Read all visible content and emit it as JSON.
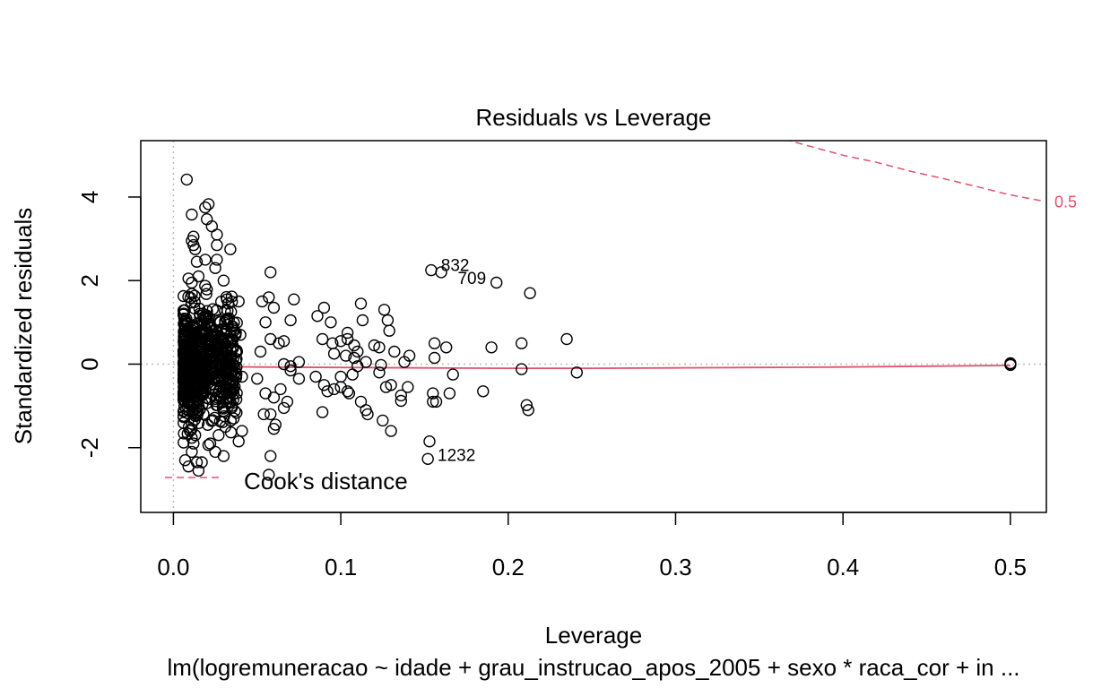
{
  "chart_data": {
    "type": "scatter",
    "title": "Residuals vs Leverage",
    "xlabel": "Leverage",
    "ylabel": "Standardized residuals",
    "subtitle": "lm(logremuneracao ~ idade + grau_instrucao_apos_2005 + sexo * raca_cor + in ...",
    "xlim": [
      -0.0195,
      0.5215
    ],
    "ylim": [
      -3.55,
      5.35
    ],
    "xticks": [
      0.0,
      0.1,
      0.2,
      0.3,
      0.4,
      0.5
    ],
    "xtick_labels": [
      "0.0",
      "0.1",
      "0.2",
      "0.3",
      "0.4",
      "0.5"
    ],
    "yticks": [
      -2,
      0,
      2,
      4
    ],
    "ytick_labels": [
      "-2",
      "0",
      "2",
      "4"
    ],
    "reference_lines": {
      "x": 0,
      "y": 0,
      "style": "dotted",
      "color": "#bebebe"
    },
    "smoother": {
      "color": "#df536b",
      "x": [
        0.007,
        0.01,
        0.015,
        0.02,
        0.03,
        0.05,
        0.1,
        0.15,
        0.2,
        0.25,
        0.3,
        0.35,
        0.4,
        0.45,
        0.5
      ],
      "y": [
        -0.15,
        -0.05,
        -0.04,
        -0.05,
        -0.06,
        -0.07,
        -0.08,
        -0.09,
        -0.1,
        -0.1,
        -0.09,
        -0.08,
        -0.07,
        -0.05,
        -0.03
      ]
    },
    "cooks_contours": [
      {
        "level": "0.5",
        "color": "#df536b",
        "x": [
          0.365,
          0.38,
          0.4,
          0.42,
          0.44,
          0.46,
          0.48,
          0.5,
          0.52
        ],
        "y": [
          5.38,
          5.22,
          5.0,
          4.83,
          4.62,
          4.44,
          4.25,
          4.05,
          3.9
        ]
      }
    ],
    "legend": {
      "label": "Cook's distance",
      "position": "bottom-left",
      "color": "#df536b"
    },
    "point_labels": [
      {
        "text": "832",
        "x": 0.155,
        "y": 2.27
      },
      {
        "text": "709",
        "x": 0.165,
        "y": 1.96
      },
      {
        "text": "1232",
        "x": 0.153,
        "y": -2.27
      }
    ],
    "points": [
      [
        0.008,
        4.42
      ],
      [
        0.011,
        3.58
      ],
      [
        0.019,
        3.75
      ],
      [
        0.021,
        3.83
      ],
      [
        0.02,
        3.47
      ],
      [
        0.023,
        3.3
      ],
      [
        0.011,
        2.95
      ],
      [
        0.012,
        2.85
      ],
      [
        0.013,
        2.75
      ],
      [
        0.012,
        3.05
      ],
      [
        0.026,
        3.1
      ],
      [
        0.026,
        2.85
      ],
      [
        0.034,
        2.75
      ],
      [
        0.014,
        2.45
      ],
      [
        0.026,
        2.5
      ],
      [
        0.025,
        2.3
      ],
      [
        0.019,
        2.5
      ],
      [
        0.015,
        2.1
      ],
      [
        0.009,
        2.05
      ],
      [
        0.011,
        1.95
      ],
      [
        0.03,
        2.0
      ],
      [
        0.058,
        2.2
      ],
      [
        0.057,
        1.6
      ],
      [
        0.072,
        1.55
      ],
      [
        0.053,
        1.5
      ],
      [
        0.032,
        1.55
      ],
      [
        0.039,
        1.5
      ],
      [
        0.06,
        1.35
      ],
      [
        0.055,
        1.0
      ],
      [
        0.07,
        1.05
      ],
      [
        0.058,
        0.6
      ],
      [
        0.063,
        0.5
      ],
      [
        0.066,
        0.55
      ],
      [
        0.04,
        0.7
      ],
      [
        0.035,
        0.9
      ],
      [
        0.038,
        0.3
      ],
      [
        0.052,
        0.3
      ],
      [
        0.086,
        1.15
      ],
      [
        0.09,
        1.35
      ],
      [
        0.094,
        1.0
      ],
      [
        0.112,
        1.45
      ],
      [
        0.113,
        1.05
      ],
      [
        0.126,
        1.3
      ],
      [
        0.128,
        1.05
      ],
      [
        0.129,
        0.8
      ],
      [
        0.12,
        0.45
      ],
      [
        0.123,
        0.4
      ],
      [
        0.132,
        0.3
      ],
      [
        0.089,
        0.6
      ],
      [
        0.095,
        0.5
      ],
      [
        0.1,
        0.55
      ],
      [
        0.104,
        0.75
      ],
      [
        0.104,
        0.6
      ],
      [
        0.108,
        0.45
      ],
      [
        0.11,
        0.3
      ],
      [
        0.096,
        0.25
      ],
      [
        0.103,
        0.2
      ],
      [
        0.108,
        0.15
      ],
      [
        0.075,
        0.05
      ],
      [
        0.066,
        0.0
      ],
      [
        0.07,
        -0.05
      ],
      [
        0.115,
        0.05
      ],
      [
        0.11,
        -0.05
      ],
      [
        0.124,
        -0.02
      ],
      [
        0.138,
        0.05
      ],
      [
        0.141,
        0.2
      ],
      [
        0.156,
        0.5
      ],
      [
        0.163,
        0.4
      ],
      [
        0.156,
        0.15
      ],
      [
        0.208,
        0.5
      ],
      [
        0.235,
        0.6
      ],
      [
        0.19,
        0.4
      ],
      [
        0.154,
        2.25
      ],
      [
        0.16,
        2.2
      ],
      [
        0.193,
        1.95
      ],
      [
        0.213,
        1.7
      ],
      [
        0.208,
        -0.12
      ],
      [
        0.241,
        -0.2
      ],
      [
        0.167,
        -0.25
      ],
      [
        0.13,
        -0.5
      ],
      [
        0.127,
        -0.55
      ],
      [
        0.14,
        -0.55
      ],
      [
        0.136,
        -0.75
      ],
      [
        0.136,
        -0.88
      ],
      [
        0.155,
        -0.9
      ],
      [
        0.157,
        -0.9
      ],
      [
        0.155,
        -0.7
      ],
      [
        0.165,
        -0.7
      ],
      [
        0.185,
        -0.65
      ],
      [
        0.1,
        -0.55
      ],
      [
        0.104,
        -0.65
      ],
      [
        0.105,
        -0.7
      ],
      [
        0.112,
        -0.9
      ],
      [
        0.115,
        -1.1
      ],
      [
        0.116,
        -1.2
      ],
      [
        0.09,
        -0.5
      ],
      [
        0.092,
        -0.65
      ],
      [
        0.096,
        -0.6
      ],
      [
        0.089,
        -1.15
      ],
      [
        0.125,
        -1.35
      ],
      [
        0.13,
        -1.6
      ],
      [
        0.153,
        -1.85
      ],
      [
        0.152,
        -2.27
      ],
      [
        0.211,
        -0.98
      ],
      [
        0.212,
        -1.1
      ],
      [
        0.055,
        -0.7
      ],
      [
        0.06,
        -0.8
      ],
      [
        0.064,
        -0.6
      ],
      [
        0.068,
        -0.9
      ],
      [
        0.066,
        -1.05
      ],
      [
        0.058,
        -1.2
      ],
      [
        0.054,
        -1.2
      ],
      [
        0.061,
        -1.45
      ],
      [
        0.06,
        -1.55
      ],
      [
        0.058,
        -2.2
      ],
      [
        0.057,
        -2.65
      ],
      [
        0.041,
        -1.6
      ],
      [
        0.039,
        -1.85
      ],
      [
        0.036,
        -1.3
      ],
      [
        0.035,
        -1.0
      ],
      [
        0.03,
        -2.2
      ],
      [
        0.025,
        -2.1
      ],
      [
        0.022,
        -1.9
      ],
      [
        0.017,
        -2.35
      ],
      [
        0.015,
        -2.55
      ],
      [
        0.014,
        -2.35
      ],
      [
        0.009,
        -2.45
      ],
      [
        0.007,
        -2.3
      ],
      [
        0.011,
        -2.1
      ],
      [
        0.012,
        -1.9
      ],
      [
        0.013,
        -1.7
      ],
      [
        0.027,
        -1.7
      ],
      [
        0.031,
        -1.5
      ],
      [
        0.036,
        -0.6
      ],
      [
        0.041,
        -0.3
      ],
      [
        0.05,
        -0.35
      ],
      [
        0.07,
        -0.15
      ],
      [
        0.075,
        -0.35
      ],
      [
        0.085,
        -0.3
      ],
      [
        0.1,
        -0.3
      ],
      [
        0.107,
        -0.25
      ],
      [
        0.123,
        -0.2
      ],
      [
        0.5,
        0.02
      ],
      [
        0.5,
        -0.02
      ],
      [
        0.5,
        0.0
      ]
    ]
  }
}
